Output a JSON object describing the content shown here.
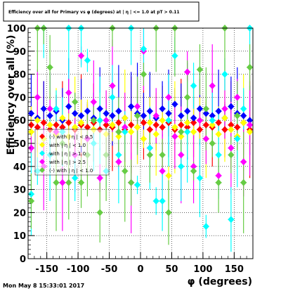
{
  "title": "Efficiency over all for Primary vs φ (degrees) at | η | <= 1.0 at pT > 0.11",
  "timestamp": "Mon May  8 15:33:01 2017",
  "colors": {
    "background": "#ffffff",
    "grid": "#000000",
    "series": [
      "#ff0000",
      "#0000ff",
      "#ffff00",
      "#ff00ff",
      "#00ffff",
      "#66cc44"
    ]
  },
  "chart_data": {
    "type": "scatter",
    "title": "Efficiency over all for Primary vs φ (degrees) at | η | <= 1.0 at pT > 0.11",
    "xlabel": "φ (degrees)",
    "ylabel": "Efficiency over all (%)",
    "xlim": [
      -180,
      180
    ],
    "ylim": [
      0,
      100
    ],
    "xticks": [
      -150,
      -100,
      -50,
      0,
      50,
      100,
      150
    ],
    "yticks": [
      0,
      10,
      20,
      30,
      40,
      50,
      60,
      70,
      80,
      90,
      100
    ],
    "grid": true,
    "legend_placement": "center-left",
    "legend_entries": [
      "(-) with | η | < 0.5",
      "with | η | < 1.0",
      "with | η | > 1.0",
      "with | η | > 2.5",
      "(-) with | η | < 1.0"
    ],
    "series": [
      {
        "color": "#ff0000",
        "points": [
          [
            -175,
            58
          ],
          [
            -165,
            57
          ],
          [
            -155,
            59
          ],
          [
            -145,
            56
          ],
          [
            -135,
            58
          ],
          [
            -125,
            57
          ],
          [
            -115,
            59
          ],
          [
            -105,
            56
          ],
          [
            -95,
            58
          ],
          [
            -85,
            57
          ],
          [
            -75,
            59
          ],
          [
            -65,
            56
          ],
          [
            -55,
            58
          ],
          [
            -45,
            57
          ],
          [
            -35,
            59
          ],
          [
            -25,
            56
          ],
          [
            -15,
            58
          ],
          [
            -5,
            57
          ],
          [
            5,
            59
          ],
          [
            15,
            56
          ],
          [
            25,
            58
          ],
          [
            35,
            57
          ],
          [
            45,
            59
          ],
          [
            55,
            56
          ],
          [
            65,
            58
          ],
          [
            75,
            57
          ],
          [
            85,
            59
          ],
          [
            95,
            56
          ],
          [
            105,
            58
          ],
          [
            115,
            57
          ],
          [
            125,
            59
          ],
          [
            135,
            56
          ],
          [
            145,
            58
          ],
          [
            155,
            57
          ],
          [
            165,
            59
          ],
          [
            175,
            56
          ]
        ]
      },
      {
        "color": "#0000ff",
        "points": [
          [
            -175,
            63
          ],
          [
            -165,
            61
          ],
          [
            -155,
            65
          ],
          [
            -145,
            62
          ],
          [
            -135,
            64
          ],
          [
            -125,
            60
          ],
          [
            -115,
            66
          ],
          [
            -105,
            63
          ],
          [
            -95,
            62
          ],
          [
            -85,
            64
          ],
          [
            -75,
            61
          ],
          [
            -65,
            65
          ],
          [
            -55,
            63
          ],
          [
            -45,
            62
          ],
          [
            -35,
            64
          ],
          [
            -25,
            61
          ],
          [
            -15,
            66
          ],
          [
            -5,
            63
          ],
          [
            5,
            62
          ],
          [
            15,
            64
          ],
          [
            25,
            61
          ],
          [
            35,
            65
          ],
          [
            45,
            63
          ],
          [
            55,
            67
          ],
          [
            65,
            62
          ],
          [
            75,
            64
          ],
          [
            85,
            61
          ],
          [
            95,
            65
          ],
          [
            105,
            63
          ],
          [
            115,
            62
          ],
          [
            125,
            64
          ],
          [
            135,
            61
          ],
          [
            145,
            66
          ],
          [
            155,
            63
          ],
          [
            165,
            62
          ],
          [
            175,
            60
          ]
        ]
      },
      {
        "color": "#ffff00",
        "points": [
          [
            -175,
            55
          ],
          [
            -165,
            60
          ],
          [
            -155,
            52
          ],
          [
            -145,
            58
          ],
          [
            -135,
            54
          ],
          [
            -125,
            61
          ],
          [
            -115,
            53
          ],
          [
            -105,
            57
          ],
          [
            -95,
            59
          ],
          [
            -85,
            52
          ],
          [
            -75,
            56
          ],
          [
            -65,
            60
          ],
          [
            -55,
            54
          ],
          [
            -45,
            58
          ],
          [
            -35,
            53
          ],
          [
            -25,
            61
          ],
          [
            -15,
            55
          ],
          [
            -5,
            57
          ],
          [
            5,
            52
          ],
          [
            15,
            59
          ],
          [
            25,
            54
          ],
          [
            35,
            60
          ],
          [
            45,
            36
          ],
          [
            55,
            57
          ],
          [
            65,
            53
          ],
          [
            75,
            59
          ],
          [
            85,
            55
          ],
          [
            95,
            60
          ],
          [
            105,
            52
          ],
          [
            115,
            58
          ],
          [
            125,
            54
          ],
          [
            135,
            61
          ],
          [
            145,
            56
          ],
          [
            155,
            53
          ],
          [
            165,
            59
          ],
          [
            175,
            55
          ]
        ]
      },
      {
        "color": "#ff00ff",
        "points": [
          [
            -175,
            48
          ],
          [
            -165,
            70
          ],
          [
            -155,
            40
          ],
          [
            -145,
            65
          ],
          [
            -135,
            55
          ],
          [
            -125,
            33
          ],
          [
            -115,
            72
          ],
          [
            -105,
            45
          ],
          [
            -95,
            88
          ],
          [
            -85,
            52
          ],
          [
            -75,
            68
          ],
          [
            -65,
            35
          ],
          [
            -55,
            60
          ],
          [
            -45,
            75
          ],
          [
            -35,
            42
          ],
          [
            -25,
            57
          ],
          [
            -15,
            33
          ],
          [
            -5,
            66
          ],
          [
            5,
            90
          ],
          [
            15,
            48
          ],
          [
            25,
            62
          ],
          [
            35,
            38
          ],
          [
            45,
            70
          ],
          [
            55,
            53
          ],
          [
            65,
            45
          ],
          [
            75,
            81
          ],
          [
            85,
            40
          ],
          [
            95,
            60
          ],
          [
            105,
            52
          ],
          [
            115,
            75
          ],
          [
            125,
            36
          ],
          [
            135,
            65
          ],
          [
            145,
            48
          ],
          [
            155,
            70
          ],
          [
            165,
            42
          ],
          [
            175,
            58
          ]
        ]
      },
      {
        "color": "#00ffff",
        "points": [
          [
            -175,
            28
          ],
          [
            -165,
            38
          ],
          [
            -155,
            100
          ],
          [
            -145,
            45
          ],
          [
            -135,
            65
          ],
          [
            -125,
            55
          ],
          [
            -115,
            100
          ],
          [
            -105,
            35
          ],
          [
            -95,
            100
          ],
          [
            -85,
            86
          ],
          [
            -75,
            50
          ],
          [
            -65,
            60
          ],
          [
            -55,
            38
          ],
          [
            -45,
            70
          ],
          [
            -35,
            45
          ],
          [
            -25,
            55
          ],
          [
            -15,
            100
          ],
          [
            -5,
            32
          ],
          [
            5,
            91
          ],
          [
            15,
            48
          ],
          [
            25,
            25
          ],
          [
            35,
            25
          ],
          [
            45,
            60
          ],
          [
            55,
            88
          ],
          [
            65,
            40
          ],
          [
            75,
            55
          ],
          [
            85,
            75
          ],
          [
            95,
            35
          ],
          [
            105,
            14
          ],
          [
            115,
            60
          ],
          [
            125,
            45
          ],
          [
            135,
            80
          ],
          [
            145,
            17
          ],
          [
            155,
            52
          ],
          [
            165,
            65
          ],
          [
            175,
            100
          ]
        ]
      },
      {
        "color": "#66cc44",
        "points": [
          [
            -175,
            25
          ],
          [
            -165,
            100
          ],
          [
            -155,
            100
          ],
          [
            -145,
            83
          ],
          [
            -135,
            33
          ],
          [
            -125,
            50
          ],
          [
            -115,
            33
          ],
          [
            -105,
            68
          ],
          [
            -95,
            33
          ],
          [
            -85,
            45
          ],
          [
            -75,
            60
          ],
          [
            -65,
            20
          ],
          [
            -55,
            45
          ],
          [
            -45,
            100
          ],
          [
            -35,
            55
          ],
          [
            -25,
            38
          ],
          [
            -15,
            33
          ],
          [
            -5,
            62
          ],
          [
            5,
            80
          ],
          [
            15,
            45
          ],
          [
            25,
            100
          ],
          [
            35,
            45
          ],
          [
            45,
            20
          ],
          [
            55,
            100
          ],
          [
            65,
            55
          ],
          [
            75,
            70
          ],
          [
            85,
            38
          ],
          [
            95,
            82
          ],
          [
            105,
            65
          ],
          [
            115,
            50
          ],
          [
            125,
            33
          ],
          [
            135,
            100
          ],
          [
            145,
            45
          ],
          [
            155,
            62
          ],
          [
            165,
            33
          ],
          [
            175,
            83
          ]
        ]
      }
    ]
  }
}
